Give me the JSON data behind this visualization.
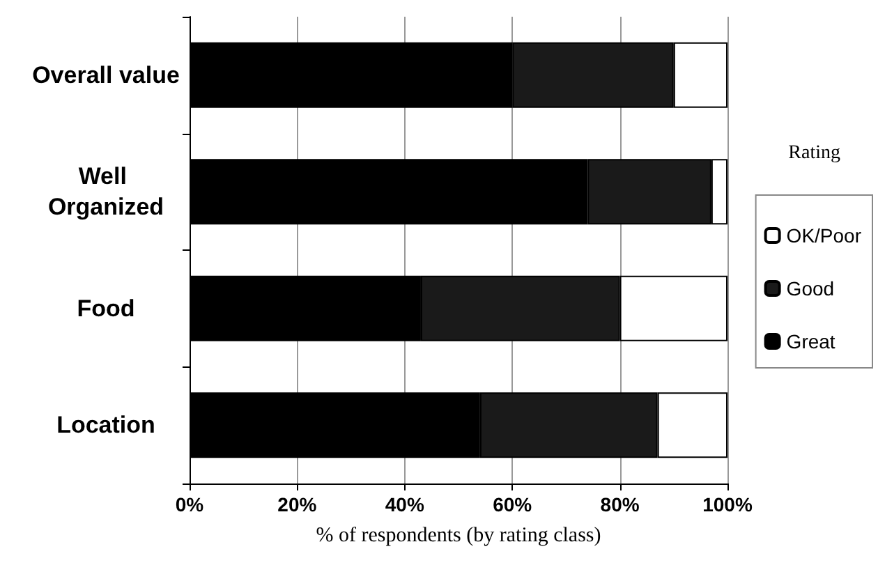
{
  "chart_data": {
    "type": "bar",
    "orientation": "horizontal",
    "stacked": true,
    "xlabel": "% of respondents (by rating class)",
    "legend_title": "Rating",
    "legend": "right",
    "grid": "x",
    "categories": [
      "Overall value",
      "Well Organized",
      "Food",
      "Location"
    ],
    "xlim": [
      0,
      100
    ],
    "xticks": [
      {
        "value": 0,
        "label": "0%"
      },
      {
        "value": 20,
        "label": "20%"
      },
      {
        "value": 40,
        "label": "40%"
      },
      {
        "value": 60,
        "label": "60%"
      },
      {
        "value": 80,
        "label": "80%"
      },
      {
        "value": 100,
        "label": "100%"
      }
    ],
    "series": [
      {
        "name": "Great",
        "color": "#000000",
        "values": [
          60,
          74,
          43,
          54
        ]
      },
      {
        "name": "Good",
        "color": "#1a1a1a",
        "values": [
          30,
          23,
          37,
          33
        ]
      },
      {
        "name": "OK/Poor",
        "color": "#ffffff",
        "values": [
          10,
          3,
          20,
          13
        ]
      }
    ]
  }
}
